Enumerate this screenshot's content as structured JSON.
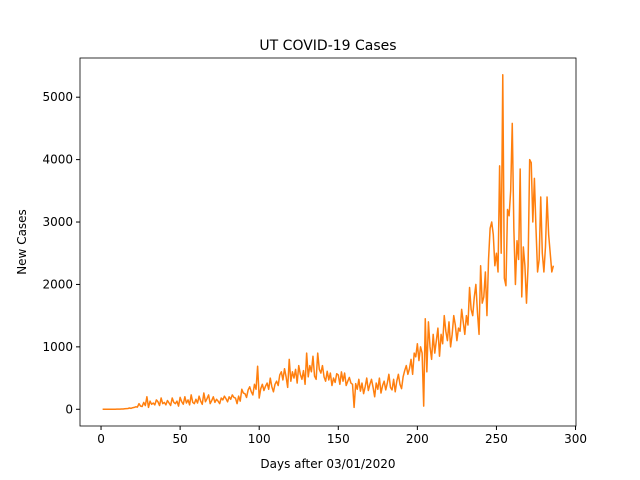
{
  "chart_data": {
    "type": "line",
    "title": "UT COVID-19 Cases",
    "xlabel": "Days after 03/01/2020",
    "ylabel": "New Cases",
    "color": "#ff7f0e",
    "xlim": [
      -13.3,
      300.3
    ],
    "ylim": [
      -268,
      5628
    ],
    "xticks": [
      0,
      50,
      100,
      150,
      200,
      250,
      300
    ],
    "yticks": [
      0,
      1000,
      2000,
      3000,
      4000,
      5000
    ],
    "x": [
      1,
      2,
      3,
      4,
      5,
      6,
      7,
      8,
      9,
      10,
      11,
      12,
      13,
      14,
      15,
      16,
      17,
      18,
      19,
      20,
      21,
      22,
      23,
      24,
      25,
      26,
      27,
      28,
      29,
      30,
      31,
      32,
      33,
      34,
      35,
      36,
      37,
      38,
      39,
      40,
      41,
      42,
      43,
      44,
      45,
      46,
      47,
      48,
      49,
      50,
      51,
      52,
      53,
      54,
      55,
      56,
      57,
      58,
      59,
      60,
      61,
      62,
      63,
      64,
      65,
      66,
      67,
      68,
      69,
      70,
      71,
      72,
      73,
      74,
      75,
      76,
      77,
      78,
      79,
      80,
      81,
      82,
      83,
      84,
      85,
      86,
      87,
      88,
      89,
      90,
      91,
      92,
      93,
      94,
      95,
      96,
      97,
      98,
      99,
      100,
      101,
      102,
      103,
      104,
      105,
      106,
      107,
      108,
      109,
      110,
      111,
      112,
      113,
      114,
      115,
      116,
      117,
      118,
      119,
      120,
      121,
      122,
      123,
      124,
      125,
      126,
      127,
      128,
      129,
      130,
      131,
      132,
      133,
      134,
      135,
      136,
      137,
      138,
      139,
      140,
      141,
      142,
      143,
      144,
      145,
      146,
      147,
      148,
      149,
      150,
      151,
      152,
      153,
      154,
      155,
      156,
      157,
      158,
      159,
      160,
      161,
      162,
      163,
      164,
      165,
      166,
      167,
      168,
      169,
      170,
      171,
      172,
      173,
      174,
      175,
      176,
      177,
      178,
      179,
      180,
      181,
      182,
      183,
      184,
      185,
      186,
      187,
      188,
      189,
      190,
      191,
      192,
      193,
      194,
      195,
      196,
      197,
      198,
      199,
      200,
      201,
      202,
      203,
      204,
      205,
      206,
      207,
      208,
      209,
      210,
      211,
      212,
      213,
      214,
      215,
      216,
      217,
      218,
      219,
      220,
      221,
      222,
      223,
      224,
      225,
      226,
      227,
      228,
      229,
      230,
      231,
      232,
      233,
      234,
      235,
      236,
      237,
      238,
      239,
      240,
      241,
      242,
      243,
      244,
      245,
      246,
      247,
      248,
      249,
      250,
      251,
      252,
      253,
      254,
      255,
      256,
      257,
      258,
      259,
      260,
      261,
      262,
      263,
      264,
      265,
      266,
      267,
      268,
      269,
      270,
      271,
      272,
      273,
      274,
      275,
      276,
      277,
      278,
      279,
      280,
      281,
      282,
      283,
      284,
      285,
      286
    ],
    "values": [
      0,
      0,
      0,
      0,
      0,
      0,
      1,
      0,
      1,
      2,
      3,
      2,
      5,
      4,
      8,
      10,
      12,
      20,
      15,
      25,
      30,
      40,
      35,
      90,
      50,
      45,
      110,
      60,
      200,
      30,
      130,
      80,
      100,
      70,
      150,
      120,
      60,
      180,
      90,
      110,
      70,
      140,
      100,
      60,
      180,
      110,
      90,
      130,
      50,
      190,
      120,
      80,
      200,
      100,
      150,
      70,
      230,
      110,
      90,
      160,
      100,
      210,
      130,
      80,
      260,
      120,
      170,
      230,
      90,
      140,
      200,
      110,
      160,
      130,
      90,
      180,
      150,
      210,
      170,
      120,
      200,
      160,
      230,
      190,
      180,
      90,
      210,
      130,
      320,
      260,
      250,
      190,
      310,
      360,
      280,
      230,
      400,
      320,
      690,
      180,
      330,
      400,
      300,
      370,
      420,
      320,
      500,
      360,
      280,
      400,
      450,
      380,
      550,
      600,
      470,
      650,
      520,
      350,
      800,
      450,
      600,
      500,
      640,
      420,
      700,
      560,
      480,
      620,
      400,
      900,
      520,
      700,
      600,
      850,
      530,
      480,
      900,
      640,
      580,
      700,
      520,
      450,
      610,
      470,
      580,
      380,
      500,
      430,
      570,
      550,
      400,
      600,
      450,
      580,
      380,
      450,
      510,
      420,
      400,
      30,
      410,
      320,
      480,
      290,
      420,
      250,
      360,
      500,
      300,
      400,
      480,
      350,
      200,
      420,
      320,
      500,
      260,
      380,
      450,
      310,
      420,
      560,
      350,
      310,
      480,
      280,
      450,
      560,
      400,
      330,
      520,
      620,
      700,
      560,
      650,
      800,
      560,
      900,
      840,
      1050,
      780,
      1000,
      900,
      50,
      1450,
      600,
      1400,
      1000,
      800,
      1200,
      900,
      1100,
      1300,
      850,
      1200,
      1050,
      1500,
      1250,
      1100,
      1400,
      1000,
      1200,
      1500,
      1350,
      1100,
      1300,
      1250,
      1600,
      1400,
      1200,
      1500,
      1350,
      1950,
      1600,
      1500,
      1800,
      2000,
      1550,
      1200,
      2300,
      1700,
      1800,
      2200,
      1500,
      2400,
      2900,
      3000,
      2800,
      2300,
      2500,
      2200,
      3900,
      2500,
      5360,
      2100,
      1980,
      3200,
      3100,
      3500,
      4580,
      2900,
      2000,
      2700,
      2400,
      3850,
      1800,
      2600,
      2300,
      1700,
      2300,
      4000,
      3950,
      3000,
      3700,
      2900,
      2200,
      2400,
      3400,
      2500,
      2200,
      2600,
      3400,
      2800,
      2500,
      2200,
      2300
    ]
  }
}
